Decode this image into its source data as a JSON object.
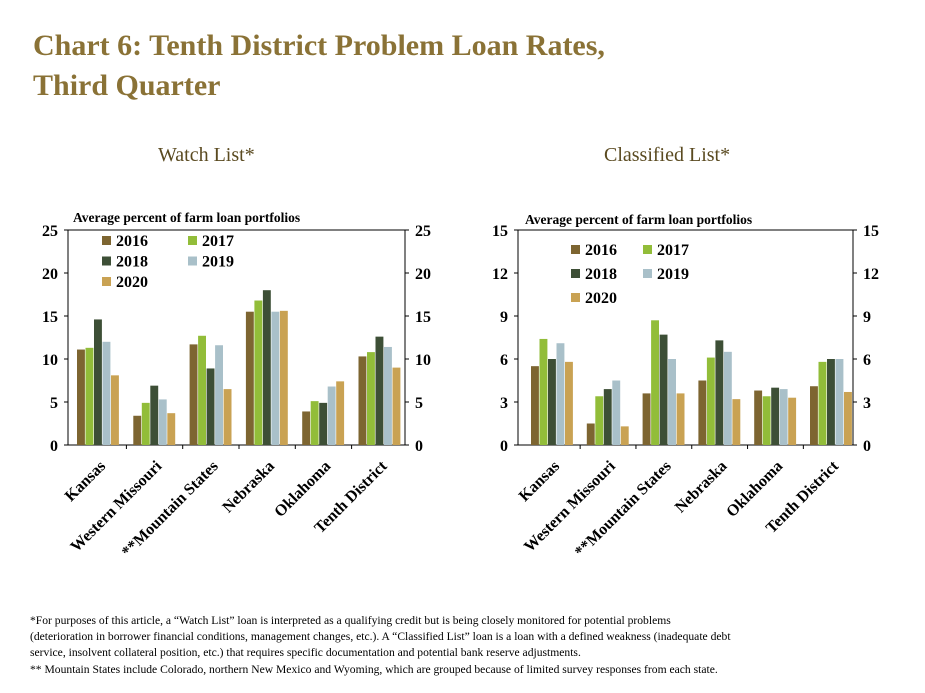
{
  "title_line1": "Chart 6: Tenth District Problem Loan Rates,",
  "title_line2": "Third Quarter",
  "colors": {
    "2016": "#7d6531",
    "2017": "#92bd39",
    "2018": "#3d4f36",
    "2019": "#a9c0c9",
    "2020": "#c9a253",
    "title": "#8a7236"
  },
  "chart_data": [
    {
      "type": "bar",
      "subtitle": "Watch List*",
      "ylabel": "Average percent of farm loan portfolios",
      "ylim": [
        0,
        25
      ],
      "yticks": [
        0,
        5,
        10,
        15,
        20,
        25
      ],
      "categories": [
        "Kansas",
        "Western Missouri",
        "**Mountain States",
        "Nebraska",
        "Oklahoma",
        "Tenth District"
      ],
      "series": [
        {
          "name": "2016",
          "values": [
            11.1,
            3.4,
            11.7,
            15.5,
            3.9,
            10.3
          ]
        },
        {
          "name": "2017",
          "values": [
            11.3,
            4.9,
            12.7,
            16.8,
            5.1,
            10.8
          ]
        },
        {
          "name": "2018",
          "values": [
            14.6,
            6.9,
            8.9,
            18.0,
            4.9,
            12.6
          ]
        },
        {
          "name": "2019",
          "values": [
            12.0,
            5.3,
            11.6,
            15.5,
            6.8,
            11.4
          ]
        },
        {
          "name": "2020",
          "values": [
            8.1,
            3.7,
            6.5,
            15.6,
            7.4,
            9.0
          ]
        }
      ],
      "legend_position": "top-left"
    },
    {
      "type": "bar",
      "subtitle": "Classified List*",
      "ylabel": "Average percent of farm loan portfolios",
      "ylim": [
        0,
        15
      ],
      "yticks": [
        0,
        3,
        6,
        9,
        12,
        15
      ],
      "categories": [
        "Kansas",
        "Western Missouri",
        "**Mountain States",
        "Nebraska",
        "Oklahoma",
        "Tenth District"
      ],
      "series": [
        {
          "name": "2016",
          "values": [
            5.5,
            1.5,
            3.6,
            4.5,
            3.8,
            4.1
          ]
        },
        {
          "name": "2017",
          "values": [
            7.4,
            3.4,
            8.7,
            6.1,
            3.4,
            5.8
          ]
        },
        {
          "name": "2018",
          "values": [
            6.0,
            3.9,
            7.7,
            7.3,
            4.0,
            6.0
          ]
        },
        {
          "name": "2019",
          "values": [
            7.1,
            4.5,
            6.0,
            6.5,
            3.9,
            6.0
          ]
        },
        {
          "name": "2020",
          "values": [
            5.8,
            1.3,
            3.6,
            3.2,
            3.3,
            3.7
          ]
        }
      ],
      "legend_position": "top-left"
    }
  ],
  "notes": [
    "*For purposes of this article, a “Watch List” loan is interpreted as a qualifying  credit but is being closely monitored for potential problems",
    "(deterioration in borrower financial conditions,  management changes, etc.). A “Classified List” loan is a loan with a defined weakness (inadequate debt",
    "service, insolvent collateral position,  etc.) that requires specific documentation  and potential bank reserve adjustments.",
    "** Mountain States include Colorado,  northern New Mexico and Wyoming,  which are grouped because of limited  survey responses from each state."
  ]
}
